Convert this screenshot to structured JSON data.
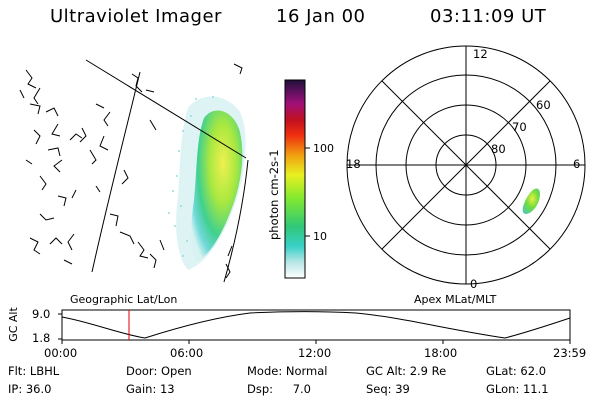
{
  "header": {
    "instrument": "Ultraviolet Imager",
    "date": "16 Jan 00",
    "time": "03:11:09 UT"
  },
  "colorbar": {
    "axis_label": "photon cm-2s-1",
    "ticks": [
      "100",
      "10"
    ]
  },
  "polar_plot": {
    "hour_labels": [
      "12",
      "18",
      "6",
      "0"
    ],
    "lat_labels": [
      "60",
      "70",
      "80"
    ]
  },
  "map_titles": {
    "left": "Geographic Lat/Lon",
    "right": "Apex MLat/MLT"
  },
  "altitude_panel": {
    "axis_label": "GC Alt",
    "y_ticks": [
      "9.0",
      "1.8"
    ],
    "x_ticks": [
      "00:00",
      "06:00",
      "12:00",
      "18:00",
      "23:59"
    ],
    "marker_color": "#e00000"
  },
  "status": {
    "row1": [
      {
        "label": "Flt:",
        "value": "LBHL"
      },
      {
        "label": "Door:",
        "value": "Open"
      },
      {
        "label": "Mode:",
        "value": "Normal"
      },
      {
        "label": "GC Alt:",
        "value": "2.9 Re"
      },
      {
        "label": "GLat:",
        "value": "62.0"
      }
    ],
    "row2": [
      {
        "label": "IP:",
        "value": "36.0"
      },
      {
        "label": "Gain:",
        "value": "13"
      },
      {
        "label": "Dsp:",
        "value": "7.0"
      },
      {
        "label": "Seq:",
        "value": "39"
      },
      {
        "label": "GLon:",
        "value": "11.1"
      }
    ]
  }
}
